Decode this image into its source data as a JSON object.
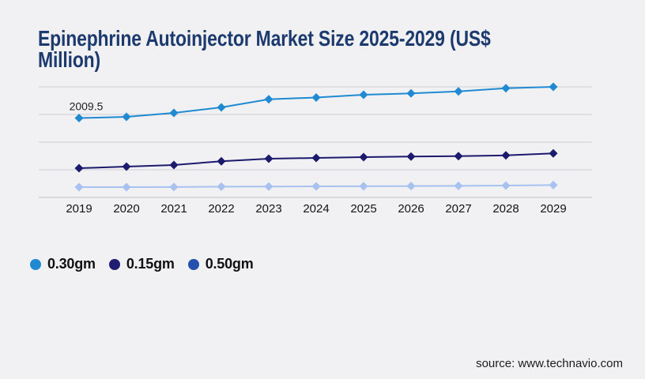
{
  "page": {
    "background_color": "#f1f1f3",
    "title": "Epinephrine Autoinjector Market Size 2025-2029 (US$ Million)",
    "title_lines": [
      "Epinephrine Autoinjector Market Size 2025-2029 (US$",
      "Million)"
    ],
    "title_color": "#1c3a6e",
    "source_text": "source: www.technavio.com"
  },
  "chart_data": {
    "type": "line",
    "title": "Epinephrine Autoinjector Market Size 2025-2029 (US$ Million)",
    "value_unit": "US$ Million",
    "categories": [
      "2019",
      "2020",
      "2021",
      "2022",
      "2023",
      "2024",
      "2025",
      "2026",
      "2027",
      "2028",
      "2029"
    ],
    "series": [
      {
        "name": "0.30gm",
        "marker": "diamond",
        "line_color": "#1f8ad2",
        "legend_color": "#1f8ad2",
        "values": [
          2009.5,
          2040,
          2140,
          2280,
          2485,
          2530,
          2600,
          2635,
          2685,
          2765,
          2800
        ]
      },
      {
        "name": "0.15gm",
        "marker": "diamond",
        "line_color": "#1c1a6d",
        "legend_color": "#211d70",
        "values": [
          740,
          780,
          820,
          915,
          980,
          1000,
          1020,
          1035,
          1045,
          1065,
          1115
        ]
      },
      {
        "name": "0.50gm",
        "marker": "diamond",
        "line_color": "#a7c2f0",
        "legend_color": "#2450ae",
        "values": [
          260,
          260,
          262,
          272,
          275,
          280,
          282,
          287,
          293,
          300,
          313
        ]
      }
    ],
    "ylim": [
      0,
      2800
    ],
    "ytick_step": 700,
    "y_axis_labels_visible": false,
    "grid": "horizontal",
    "legend_position": "bottom-left",
    "annotations": [
      {
        "series": "0.30gm",
        "category": "2019",
        "text": "2009.5"
      }
    ]
  }
}
